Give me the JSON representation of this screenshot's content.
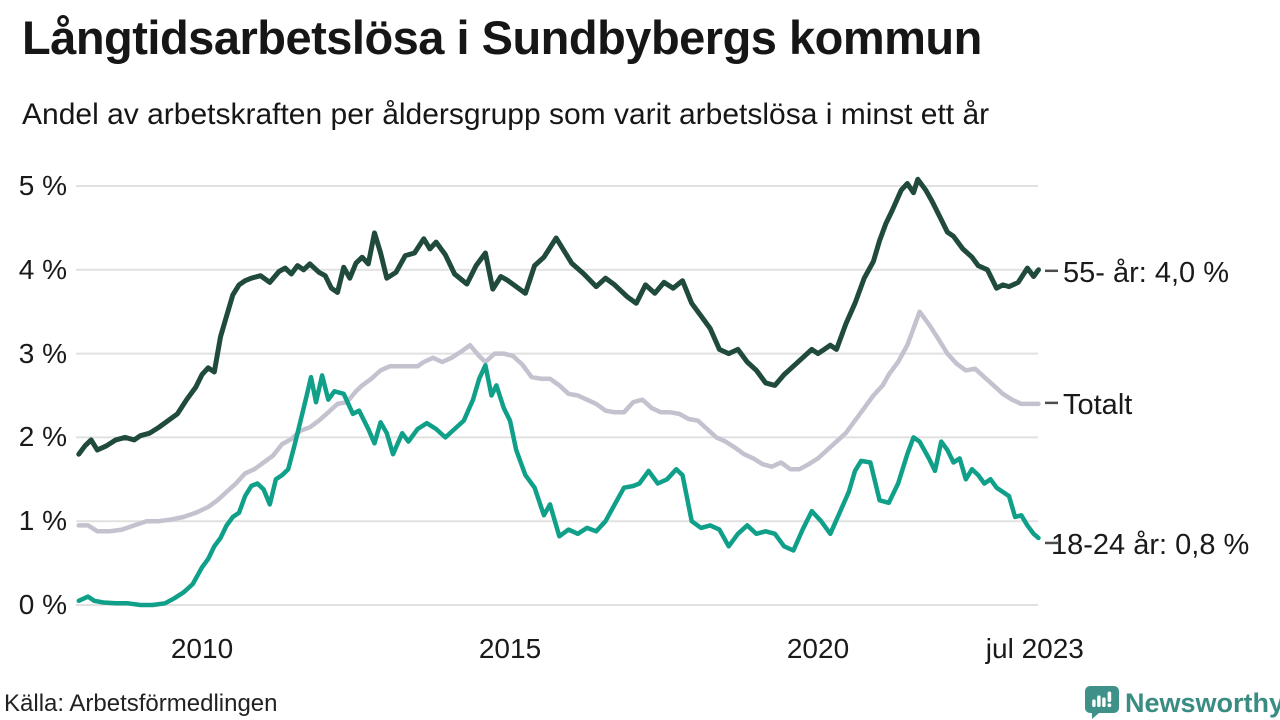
{
  "header": {
    "title": "Långtidsarbetslösa i Sundbybergs kommun",
    "subtitle": "Andel av arbetskraften per åldersgrupp som varit arbetslösa i minst ett år"
  },
  "footer": {
    "source": "Källa: Arbetsförmedlingen",
    "brand": "Newsworthy",
    "brand_color": "#3d9188"
  },
  "colors": {
    "series_55": "#204a3c",
    "series_total": "#c3c2ce",
    "series_18_24": "#10a089",
    "gridline": "#e1e1e1",
    "tick_dash": "#4d4d4d",
    "text": "#1a1a1a"
  },
  "chart_data": {
    "type": "line",
    "title": "Långtidsarbetslösa i Sundbybergs kommun",
    "subtitle": "Andel av arbetskraften per åldersgrupp som varit arbetslösa i minst ett år",
    "unit": "%",
    "grid": "horizontal",
    "legend_position": "right-end-labels",
    "x_axis": {
      "range": [
        2008.0,
        2023.58
      ],
      "ticks": [
        {
          "label": "2010",
          "year": 2010
        },
        {
          "label": "2015",
          "year": 2015
        },
        {
          "label": "2020",
          "year": 2020
        },
        {
          "label": "jul 2023",
          "year": 2023.52
        }
      ]
    },
    "y_axis": {
      "range": [
        0,
        5
      ],
      "ticks": [
        {
          "label": "0 %",
          "value": 0
        },
        {
          "label": "1 %",
          "value": 1
        },
        {
          "label": "2 %",
          "value": 2
        },
        {
          "label": "3 %",
          "value": 3
        },
        {
          "label": "4 %",
          "value": 4
        },
        {
          "label": "5 %",
          "value": 5
        }
      ]
    },
    "series": [
      {
        "name": "Totalt",
        "end_label": "Totalt",
        "color": "#c3c2ce",
        "last_value": 2.4,
        "x": [
          2008.0,
          2008.15,
          2008.3,
          2008.5,
          2008.7,
          2008.9,
          2009.1,
          2009.3,
          2009.5,
          2009.7,
          2009.9,
          2010.1,
          2010.25,
          2010.4,
          2010.55,
          2010.7,
          2010.85,
          2011.0,
          2011.15,
          2011.3,
          2011.45,
          2011.6,
          2011.75,
          2011.9,
          2012.05,
          2012.2,
          2012.35,
          2012.5,
          2012.6,
          2012.75,
          2012.9,
          2013.05,
          2013.2,
          2013.35,
          2013.5,
          2013.6,
          2013.75,
          2013.9,
          2014.05,
          2014.2,
          2014.35,
          2014.5,
          2014.6,
          2014.75,
          2014.9,
          2015.05,
          2015.2,
          2015.35,
          2015.5,
          2015.65,
          2015.8,
          2015.95,
          2016.1,
          2016.25,
          2016.4,
          2016.55,
          2016.7,
          2016.85,
          2017.0,
          2017.15,
          2017.3,
          2017.45,
          2017.6,
          2017.75,
          2017.9,
          2018.05,
          2018.2,
          2018.35,
          2018.5,
          2018.65,
          2018.8,
          2018.95,
          2019.1,
          2019.25,
          2019.4,
          2019.55,
          2019.7,
          2019.85,
          2020.0,
          2020.15,
          2020.3,
          2020.45,
          2020.6,
          2020.75,
          2020.9,
          2021.05,
          2021.15,
          2021.3,
          2021.45,
          2021.55,
          2021.65,
          2021.8,
          2021.95,
          2022.1,
          2022.25,
          2022.4,
          2022.55,
          2022.7,
          2022.85,
          2023.0,
          2023.15,
          2023.3,
          2023.45,
          2023.58
        ],
        "y": [
          0.95,
          0.95,
          0.88,
          0.88,
          0.9,
          0.95,
          1.0,
          1.0,
          1.02,
          1.05,
          1.1,
          1.17,
          1.25,
          1.35,
          1.45,
          1.57,
          1.62,
          1.7,
          1.78,
          1.92,
          1.98,
          2.08,
          2.12,
          2.2,
          2.3,
          2.4,
          2.42,
          2.55,
          2.62,
          2.7,
          2.8,
          2.85,
          2.85,
          2.85,
          2.85,
          2.9,
          2.95,
          2.9,
          2.95,
          3.02,
          3.1,
          2.97,
          2.9,
          3.0,
          3.0,
          2.97,
          2.87,
          2.72,
          2.7,
          2.7,
          2.62,
          2.52,
          2.5,
          2.45,
          2.4,
          2.32,
          2.3,
          2.3,
          2.42,
          2.45,
          2.35,
          2.3,
          2.3,
          2.28,
          2.22,
          2.2,
          2.1,
          2.0,
          1.95,
          1.88,
          1.8,
          1.75,
          1.68,
          1.65,
          1.7,
          1.62,
          1.62,
          1.68,
          1.75,
          1.85,
          1.95,
          2.05,
          2.2,
          2.35,
          2.5,
          2.62,
          2.75,
          2.9,
          3.1,
          3.3,
          3.5,
          3.35,
          3.18,
          3.0,
          2.88,
          2.8,
          2.82,
          2.72,
          2.62,
          2.52,
          2.45,
          2.4,
          2.4,
          2.4
        ]
      },
      {
        "name": "55- år",
        "end_label": "55- år: 4,0 %",
        "color": "#204a3c",
        "last_value": 4.0,
        "x": [
          2008.0,
          2008.1,
          2008.2,
          2008.3,
          2008.45,
          2008.6,
          2008.75,
          2008.9,
          2009.0,
          2009.15,
          2009.3,
          2009.45,
          2009.6,
          2009.75,
          2009.9,
          2010.0,
          2010.1,
          2010.2,
          2010.3,
          2010.4,
          2010.5,
          2010.6,
          2010.7,
          2010.8,
          2010.95,
          2011.1,
          2011.25,
          2011.35,
          2011.45,
          2011.55,
          2011.65,
          2011.75,
          2011.9,
          2012.0,
          2012.1,
          2012.2,
          2012.3,
          2012.4,
          2012.5,
          2012.6,
          2012.7,
          2012.8,
          2012.9,
          2013.0,
          2013.15,
          2013.3,
          2013.45,
          2013.6,
          2013.7,
          2013.8,
          2013.95,
          2014.1,
          2014.3,
          2014.45,
          2014.6,
          2014.72,
          2014.85,
          2014.95,
          2015.1,
          2015.25,
          2015.4,
          2015.55,
          2015.75,
          2015.9,
          2016.0,
          2016.2,
          2016.4,
          2016.55,
          2016.7,
          2016.9,
          2017.05,
          2017.2,
          2017.35,
          2017.5,
          2017.65,
          2017.8,
          2017.95,
          2018.1,
          2018.25,
          2018.4,
          2018.55,
          2018.7,
          2018.85,
          2019.0,
          2019.15,
          2019.3,
          2019.45,
          2019.6,
          2019.75,
          2019.9,
          2020.0,
          2020.1,
          2020.2,
          2020.3,
          2020.45,
          2020.6,
          2020.75,
          2020.9,
          2021.0,
          2021.1,
          2021.2,
          2021.35,
          2021.45,
          2021.55,
          2021.62,
          2021.75,
          2021.85,
          2022.0,
          2022.1,
          2022.2,
          2022.35,
          2022.5,
          2022.6,
          2022.75,
          2022.9,
          2023.0,
          2023.1,
          2023.25,
          2023.4,
          2023.5,
          2023.58
        ],
        "y": [
          1.8,
          1.9,
          1.97,
          1.85,
          1.9,
          1.97,
          2.0,
          1.97,
          2.02,
          2.05,
          2.12,
          2.2,
          2.28,
          2.45,
          2.6,
          2.75,
          2.83,
          2.78,
          3.2,
          3.45,
          3.7,
          3.82,
          3.87,
          3.9,
          3.93,
          3.85,
          3.98,
          4.02,
          3.95,
          4.05,
          4.0,
          4.07,
          3.97,
          3.93,
          3.78,
          3.73,
          4.03,
          3.9,
          4.08,
          4.15,
          4.07,
          4.44,
          4.2,
          3.9,
          3.97,
          4.17,
          4.2,
          4.37,
          4.25,
          4.33,
          4.18,
          3.95,
          3.83,
          4.05,
          4.2,
          3.77,
          3.92,
          3.88,
          3.8,
          3.72,
          4.05,
          4.15,
          4.38,
          4.2,
          4.08,
          3.95,
          3.8,
          3.9,
          3.82,
          3.68,
          3.6,
          3.82,
          3.72,
          3.85,
          3.78,
          3.87,
          3.6,
          3.45,
          3.3,
          3.05,
          3.0,
          3.05,
          2.9,
          2.8,
          2.65,
          2.62,
          2.75,
          2.85,
          2.95,
          3.05,
          3.0,
          3.05,
          3.1,
          3.05,
          3.35,
          3.6,
          3.9,
          4.1,
          4.35,
          4.55,
          4.7,
          4.95,
          5.03,
          4.92,
          5.08,
          4.95,
          4.82,
          4.6,
          4.45,
          4.4,
          4.25,
          4.15,
          4.05,
          4.0,
          3.78,
          3.82,
          3.8,
          3.85,
          4.02,
          3.92,
          4.0
        ]
      },
      {
        "name": "18-24 år",
        "end_label": "18-24 år: 0,8 %",
        "color": "#10a089",
        "last_value": 0.8,
        "x": [
          2008.0,
          2008.15,
          2008.25,
          2008.4,
          2008.6,
          2008.8,
          2009.0,
          2009.2,
          2009.4,
          2009.55,
          2009.7,
          2009.85,
          2010.0,
          2010.1,
          2010.2,
          2010.3,
          2010.4,
          2010.5,
          2010.6,
          2010.7,
          2010.8,
          2010.9,
          2011.0,
          2011.1,
          2011.2,
          2011.3,
          2011.4,
          2011.5,
          2011.6,
          2011.7,
          2011.77,
          2011.85,
          2011.95,
          2012.05,
          2012.15,
          2012.3,
          2012.45,
          2012.55,
          2012.7,
          2012.8,
          2012.9,
          2013.0,
          2013.1,
          2013.25,
          2013.35,
          2013.5,
          2013.65,
          2013.8,
          2013.95,
          2014.1,
          2014.25,
          2014.4,
          2014.5,
          2014.6,
          2014.7,
          2014.78,
          2014.9,
          2015.0,
          2015.1,
          2015.25,
          2015.4,
          2015.55,
          2015.65,
          2015.8,
          2015.95,
          2016.1,
          2016.25,
          2016.4,
          2016.55,
          2016.7,
          2016.85,
          2017.0,
          2017.1,
          2017.25,
          2017.4,
          2017.55,
          2017.7,
          2017.8,
          2017.95,
          2018.1,
          2018.25,
          2018.4,
          2018.55,
          2018.7,
          2018.85,
          2019.0,
          2019.15,
          2019.3,
          2019.45,
          2019.6,
          2019.75,
          2019.9,
          2020.05,
          2020.2,
          2020.35,
          2020.5,
          2020.6,
          2020.7,
          2020.85,
          2021.0,
          2021.15,
          2021.3,
          2021.45,
          2021.55,
          2021.65,
          2021.8,
          2021.9,
          2022.0,
          2022.1,
          2022.2,
          2022.3,
          2022.4,
          2022.5,
          2022.6,
          2022.7,
          2022.8,
          2022.9,
          2023.0,
          2023.1,
          2023.2,
          2023.3,
          2023.4,
          2023.5,
          2023.58
        ],
        "y": [
          0.05,
          0.1,
          0.05,
          0.03,
          0.02,
          0.02,
          0.0,
          0.0,
          0.02,
          0.08,
          0.15,
          0.25,
          0.45,
          0.55,
          0.7,
          0.8,
          0.95,
          1.05,
          1.1,
          1.3,
          1.42,
          1.45,
          1.38,
          1.2,
          1.5,
          1.55,
          1.62,
          1.9,
          2.2,
          2.5,
          2.72,
          2.42,
          2.74,
          2.45,
          2.55,
          2.52,
          2.28,
          2.32,
          2.1,
          1.93,
          2.18,
          2.05,
          1.8,
          2.05,
          1.95,
          2.1,
          2.17,
          2.1,
          2.0,
          2.1,
          2.2,
          2.45,
          2.7,
          2.86,
          2.5,
          2.62,
          2.35,
          2.2,
          1.85,
          1.55,
          1.4,
          1.07,
          1.2,
          0.82,
          0.9,
          0.85,
          0.92,
          0.88,
          1.0,
          1.2,
          1.4,
          1.42,
          1.45,
          1.6,
          1.45,
          1.5,
          1.62,
          1.55,
          1.0,
          0.92,
          0.95,
          0.9,
          0.7,
          0.85,
          0.95,
          0.85,
          0.88,
          0.85,
          0.7,
          0.65,
          0.9,
          1.12,
          1.0,
          0.85,
          1.1,
          1.35,
          1.6,
          1.72,
          1.7,
          1.25,
          1.22,
          1.45,
          1.8,
          2.0,
          1.95,
          1.75,
          1.6,
          1.95,
          1.85,
          1.7,
          1.75,
          1.5,
          1.62,
          1.55,
          1.45,
          1.5,
          1.4,
          1.35,
          1.3,
          1.05,
          1.07,
          0.95,
          0.85,
          0.8
        ]
      }
    ]
  }
}
